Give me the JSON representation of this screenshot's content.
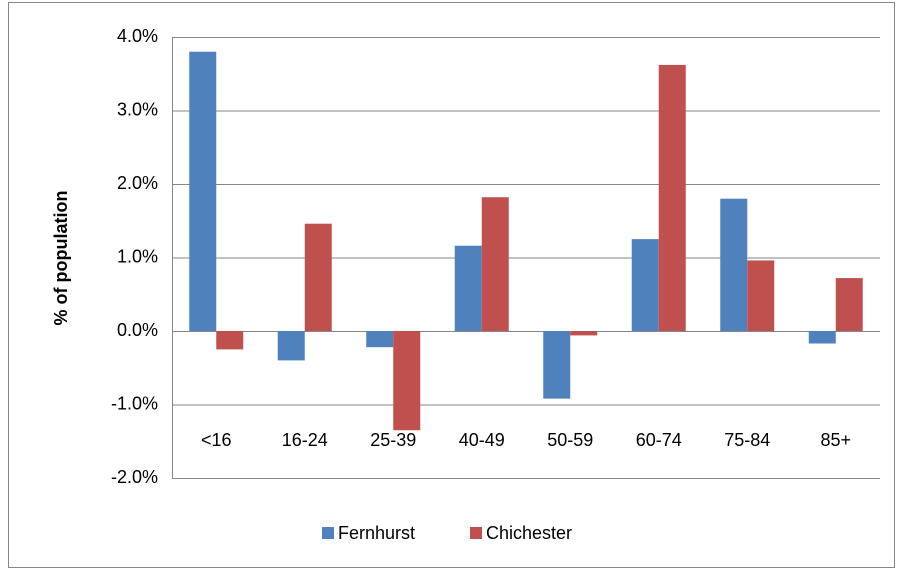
{
  "chart_data": {
    "type": "bar",
    "y_label": "% of population",
    "categories": [
      "<16",
      "16-24",
      "25-39",
      "40-49",
      "50-59",
      "60-74",
      "75-84",
      "85+"
    ],
    "series": [
      {
        "name": "Fernhurst",
        "color": "#4f81bd",
        "values": [
          3.8,
          -0.4,
          -0.22,
          1.16,
          -0.92,
          1.25,
          1.8,
          -0.17
        ]
      },
      {
        "name": "Chichester",
        "color": "#c0504d",
        "values": [
          -0.25,
          1.46,
          -1.35,
          1.82,
          -0.06,
          3.62,
          0.96,
          0.72
        ]
      }
    ],
    "ylim": [
      -2,
      4
    ],
    "yticks": [
      {
        "value": -2,
        "label": "-2.0%"
      },
      {
        "value": -1,
        "label": "-1.0%"
      },
      {
        "value": 0,
        "label": "0.0%"
      },
      {
        "value": 1,
        "label": "1.0%"
      },
      {
        "value": 2,
        "label": "2.0%"
      },
      {
        "value": 3,
        "label": "3.0%"
      },
      {
        "value": 4,
        "label": "4.0%"
      }
    ],
    "grid": true,
    "legend": "bottom"
  }
}
